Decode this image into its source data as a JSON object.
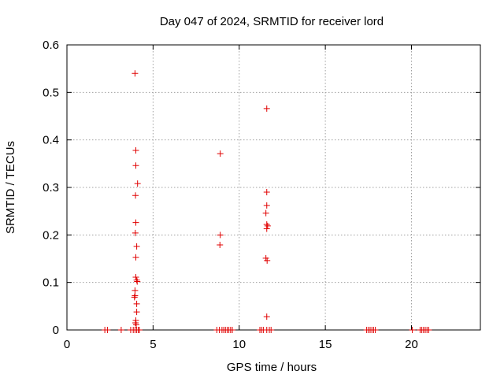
{
  "chart_data": {
    "type": "scatter",
    "title": "Day 047 of 2024, SRMTID for receiver lord",
    "xlabel": "GPS time / hours",
    "ylabel": "SRMTID / TECUs",
    "xlim": [
      0,
      24
    ],
    "ylim": [
      0,
      0.6
    ],
    "xticks": [
      "0",
      "5",
      "10",
      "15",
      "20"
    ],
    "yticks": [
      "0",
      "0.1",
      "0.2",
      "0.3",
      "0.4",
      "0.5",
      "0.6"
    ],
    "grid": true,
    "marker": "plus",
    "color": "#e00000",
    "series": [
      {
        "points": [
          [
            2.2,
            0
          ],
          [
            2.35,
            0
          ],
          [
            3.15,
            0
          ],
          [
            3.7,
            0
          ],
          [
            3.85,
            0
          ],
          [
            3.95,
            0
          ],
          [
            4.05,
            0
          ],
          [
            4.15,
            0
          ],
          [
            4.2,
            0
          ],
          [
            3.95,
            0.54
          ],
          [
            4.0,
            0.378
          ],
          [
            4.0,
            0.346
          ],
          [
            4.1,
            0.308
          ],
          [
            3.98,
            0.283
          ],
          [
            4.0,
            0.226
          ],
          [
            3.97,
            0.204
          ],
          [
            4.05,
            0.176
          ],
          [
            4.0,
            0.153
          ],
          [
            4.0,
            0.111
          ],
          [
            4.05,
            0.105
          ],
          [
            4.08,
            0.102
          ],
          [
            3.95,
            0.083
          ],
          [
            3.95,
            0.072
          ],
          [
            3.92,
            0.069
          ],
          [
            4.05,
            0.055
          ],
          [
            4.05,
            0.038
          ],
          [
            4.0,
            0.02
          ],
          [
            3.98,
            0.015
          ],
          [
            4.02,
            0.011
          ],
          [
            8.7,
            0
          ],
          [
            8.85,
            0
          ],
          [
            9.0,
            0
          ],
          [
            9.1,
            0
          ],
          [
            9.2,
            0
          ],
          [
            9.3,
            0
          ],
          [
            9.4,
            0
          ],
          [
            9.5,
            0
          ],
          [
            9.6,
            0
          ],
          [
            8.9,
            0.371
          ],
          [
            8.9,
            0.2
          ],
          [
            8.88,
            0.179
          ],
          [
            11.2,
            0
          ],
          [
            11.3,
            0
          ],
          [
            11.4,
            0
          ],
          [
            11.6,
            0
          ],
          [
            11.75,
            0
          ],
          [
            11.85,
            0
          ],
          [
            11.6,
            0.466
          ],
          [
            11.6,
            0.29
          ],
          [
            11.6,
            0.262
          ],
          [
            11.55,
            0.246
          ],
          [
            11.6,
            0.222
          ],
          [
            11.65,
            0.219
          ],
          [
            11.6,
            0.213
          ],
          [
            11.55,
            0.151
          ],
          [
            11.62,
            0.146
          ],
          [
            11.6,
            0.028
          ],
          [
            17.4,
            0
          ],
          [
            17.5,
            0
          ],
          [
            17.6,
            0
          ],
          [
            17.7,
            0
          ],
          [
            17.8,
            0
          ],
          [
            17.9,
            0
          ],
          [
            20.05,
            0
          ],
          [
            20.5,
            0
          ],
          [
            20.6,
            0
          ],
          [
            20.7,
            0
          ],
          [
            20.8,
            0
          ],
          [
            20.9,
            0
          ],
          [
            21.0,
            0
          ]
        ]
      }
    ]
  }
}
